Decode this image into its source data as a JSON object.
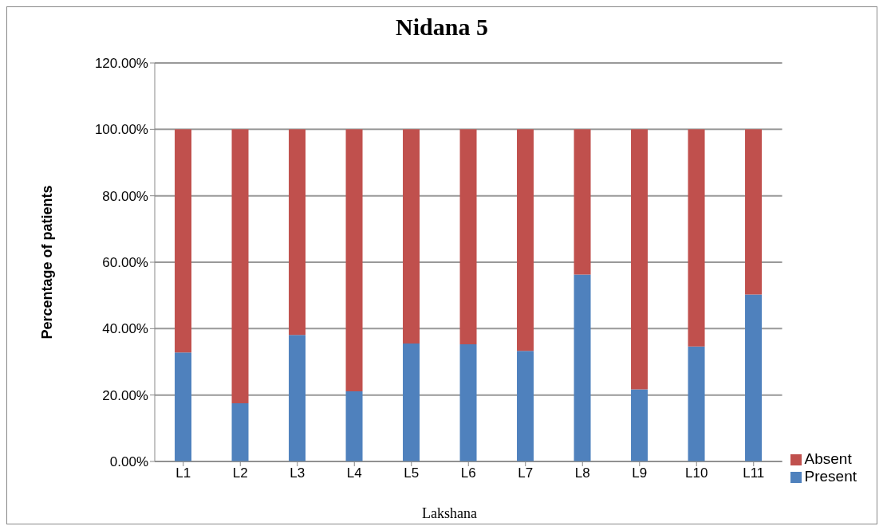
{
  "chart_data": {
    "type": "bar",
    "title": "Nidana 5",
    "xlabel": "Lakshana",
    "ylabel": "Percentage of patients",
    "categories": [
      "L1",
      "L2",
      "L3",
      "L4",
      "L5",
      "L6",
      "L7",
      "L8",
      "L9",
      "L10",
      "L11"
    ],
    "stacked": true,
    "series": [
      {
        "name": "Present",
        "color": "#4f81bd",
        "values": [
          32.8,
          17.5,
          38.1,
          21.1,
          35.5,
          35.3,
          33.3,
          56.3,
          21.7,
          34.6,
          50.3
        ]
      },
      {
        "name": "Absent",
        "color": "#c0504d",
        "values": [
          67.2,
          82.5,
          61.9,
          78.9,
          64.5,
          64.7,
          66.7,
          43.7,
          78.3,
          65.4,
          49.7
        ]
      }
    ],
    "ylim": [
      0,
      120
    ],
    "yticks": [
      {
        "value": 0,
        "label": "0.00%"
      },
      {
        "value": 20,
        "label": "20.00%"
      },
      {
        "value": 40,
        "label": "40.00%"
      },
      {
        "value": 60,
        "label": "60.00%"
      },
      {
        "value": 80,
        "label": "80.00%"
      },
      {
        "value": 100,
        "label": "100.00%"
      },
      {
        "value": 120,
        "label": "120.00%"
      }
    ],
    "grid": "y",
    "legend": "right"
  }
}
